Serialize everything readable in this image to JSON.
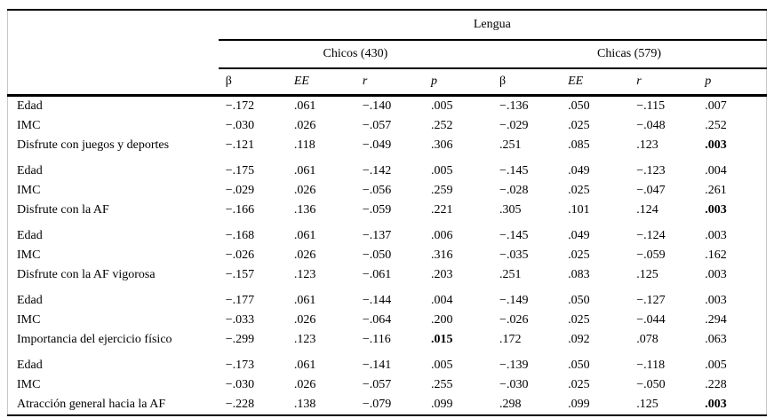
{
  "table": {
    "span_header": "Lengua",
    "group_headers": [
      {
        "label": "Chicos (430)"
      },
      {
        "label": "Chicas (579)"
      }
    ],
    "stat_columns": [
      "β",
      "EE",
      "r",
      "p",
      "β",
      "EE",
      "r",
      "p"
    ],
    "row_groups": [
      {
        "rows": [
          {
            "label": "Edad",
            "values": [
              "−.172",
              ".061",
              "−.140",
              ".005",
              "−.136",
              ".050",
              "−.115",
              ".007"
            ],
            "bold": []
          },
          {
            "label": "IMC",
            "values": [
              "−.030",
              ".026",
              "−.057",
              ".252",
              "−.029",
              ".025",
              "−.048",
              ".252"
            ],
            "bold": []
          },
          {
            "label": "Disfrute con juegos y deportes",
            "values": [
              "−.121",
              ".118",
              "−.049",
              ".306",
              ".251",
              ".085",
              ".123",
              ".003"
            ],
            "bold": [
              7
            ]
          }
        ]
      },
      {
        "rows": [
          {
            "label": "Edad",
            "values": [
              "−.175",
              ".061",
              "−.142",
              ".005",
              "−.145",
              ".049",
              "−.123",
              ".004"
            ],
            "bold": []
          },
          {
            "label": "IMC",
            "values": [
              "−.029",
              ".026",
              "−.056",
              ".259",
              "−.028",
              ".025",
              "−.047",
              ".261"
            ],
            "bold": []
          },
          {
            "label": "Disfrute con la AF",
            "values": [
              "−.166",
              ".136",
              "−.059",
              ".221",
              ".305",
              ".101",
              ".124",
              ".003"
            ],
            "bold": [
              7
            ]
          }
        ]
      },
      {
        "rows": [
          {
            "label": "Edad",
            "values": [
              "−.168",
              ".061",
              "−.137",
              ".006",
              "−.145",
              ".049",
              "−.124",
              ".003"
            ],
            "bold": []
          },
          {
            "label": "IMC",
            "values": [
              "−.026",
              ".026",
              "−.050",
              ".316",
              "−.035",
              ".025",
              "−.059",
              ".162"
            ],
            "bold": []
          },
          {
            "label": "Disfrute con la AF vigorosa",
            "values": [
              "−.157",
              ".123",
              "−.061",
              ".203",
              ".251",
              ".083",
              ".125",
              ".003"
            ],
            "bold": []
          }
        ]
      },
      {
        "rows": [
          {
            "label": "Edad",
            "values": [
              "−.177",
              ".061",
              "−.144",
              ".004",
              "−.149",
              ".050",
              "−.127",
              ".003"
            ],
            "bold": []
          },
          {
            "label": "IMC",
            "values": [
              "−.033",
              ".026",
              "−.064",
              ".200",
              "−.026",
              ".025",
              "−.044",
              ".294"
            ],
            "bold": []
          },
          {
            "label": "Importancia del ejercicio físico",
            "values": [
              "−.299",
              ".123",
              "−.116",
              ".015",
              ".172",
              ".092",
              ".078",
              ".063"
            ],
            "bold": [
              3
            ]
          }
        ]
      },
      {
        "rows": [
          {
            "label": "Edad",
            "values": [
              "−.173",
              ".061",
              "−.141",
              ".005",
              "−.139",
              ".050",
              "−.118",
              ".005"
            ],
            "bold": []
          },
          {
            "label": "IMC",
            "values": [
              "−.030",
              ".026",
              "−.057",
              ".255",
              "−.030",
              ".025",
              "−.050",
              ".228"
            ],
            "bold": []
          },
          {
            "label": "Atracción general hacia la AF",
            "values": [
              "−.228",
              ".138",
              "−.079",
              ".099",
              ".298",
              ".099",
              ".125",
              ".003"
            ],
            "bold": [
              7
            ]
          }
        ]
      }
    ]
  }
}
